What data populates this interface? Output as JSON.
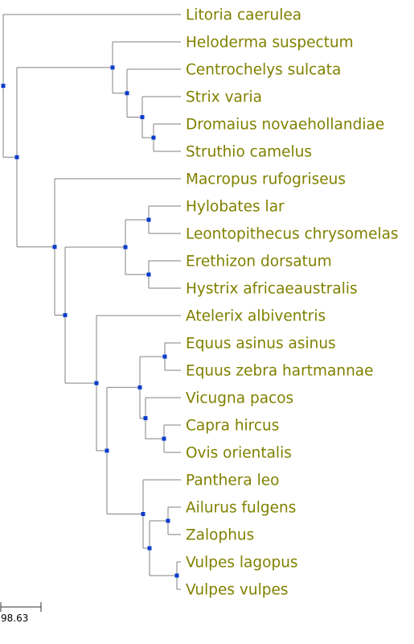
{
  "colors": {
    "branch": "#808080",
    "node": "#0a3ccc",
    "label": "#808000",
    "scale": "#333333"
  },
  "leaves": [
    "Litoria caerulea",
    "Heloderma suspectum",
    "Centrochelys sulcata",
    "Strix varia",
    "Dromaius novaehollandiae",
    "Struthio camelus",
    "Macropus rufogriseus",
    "Hylobates lar",
    "Leontopithecus chrysomelas",
    "Erethizon dorsatum",
    "Hystrix africaeaustralis",
    "Atelerix albiventris",
    "Equus asinus asinus",
    "Equus zebra hartmannae",
    "Vicugna pacos",
    "Capra hircus",
    "Ovis orientalis",
    "Panthera leo",
    "Ailurus fulgens",
    "Zalophus",
    "Vulpes lagopus",
    "Vulpes vulpes"
  ],
  "scale": {
    "label": "98.63"
  }
}
